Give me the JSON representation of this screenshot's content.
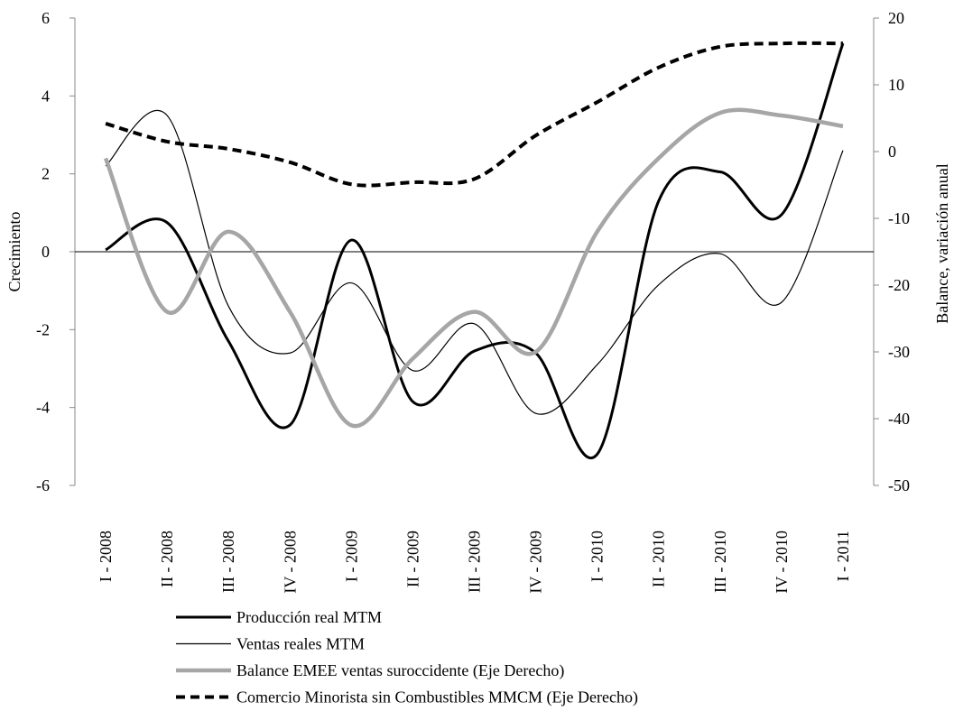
{
  "chart_data": {
    "type": "line",
    "categories": [
      "I - 2008",
      "II - 2008",
      "III - 2008",
      "IV - 2008",
      "I - 2009",
      "II - 2009",
      "III - 2009",
      "IV - 2009",
      "I - 2010",
      "II - 2010",
      "III - 2010",
      "IV - 2010",
      "I - 2011"
    ],
    "y_label": "Crecimiento",
    "y2_label": "Balance,  variación anual",
    "ylim": [
      -6,
      6
    ],
    "yticks": [
      -6,
      -4,
      -2,
      0,
      2,
      4,
      6
    ],
    "y2lim": [
      -50,
      20
    ],
    "y2ticks": [
      -50,
      -40,
      -30,
      -20,
      -10,
      0,
      10,
      20
    ],
    "smooth": true,
    "series": [
      {
        "name": "Producción real MTM",
        "color": "#000000",
        "width": 3,
        "dash": false,
        "values": [
          0.05,
          0.75,
          -2.3,
          -4.45,
          0.3,
          -3.85,
          -2.55,
          -2.6,
          -5.2,
          1.3,
          2.05,
          0.95,
          5.35
        ]
      },
      {
        "name": "Ventas reales MTM",
        "color": "#000000",
        "width": 1.2,
        "dash": false,
        "values": [
          2.2,
          3.5,
          -1.4,
          -2.6,
          -0.8,
          -3.05,
          -1.85,
          -4.15,
          -2.9,
          -0.85,
          -0.05,
          -1.3,
          2.6
        ]
      },
      {
        "name": "Balance EMEE ventas suroccidente (Eje Derecho)",
        "color": "#a6a6a6",
        "width": 4.5,
        "dash": false,
        "axis": "y2",
        "values": [
          -1,
          -24,
          -12,
          -24,
          -41,
          -31,
          -24,
          -30,
          -12,
          -1,
          5.8,
          5.4,
          3.8
        ]
      },
      {
        "name": "Comercio Minorista sin Combustibles MMCM (Eje Derecho)",
        "color": "#000000",
        "width": 4,
        "dash": true,
        "axis": "y2",
        "values": [
          4.2,
          1.5,
          0.4,
          -1.6,
          -4.9,
          -4.6,
          -4.1,
          2.4,
          7.4,
          12.6,
          15.7,
          16.2,
          16.2
        ]
      }
    ]
  }
}
